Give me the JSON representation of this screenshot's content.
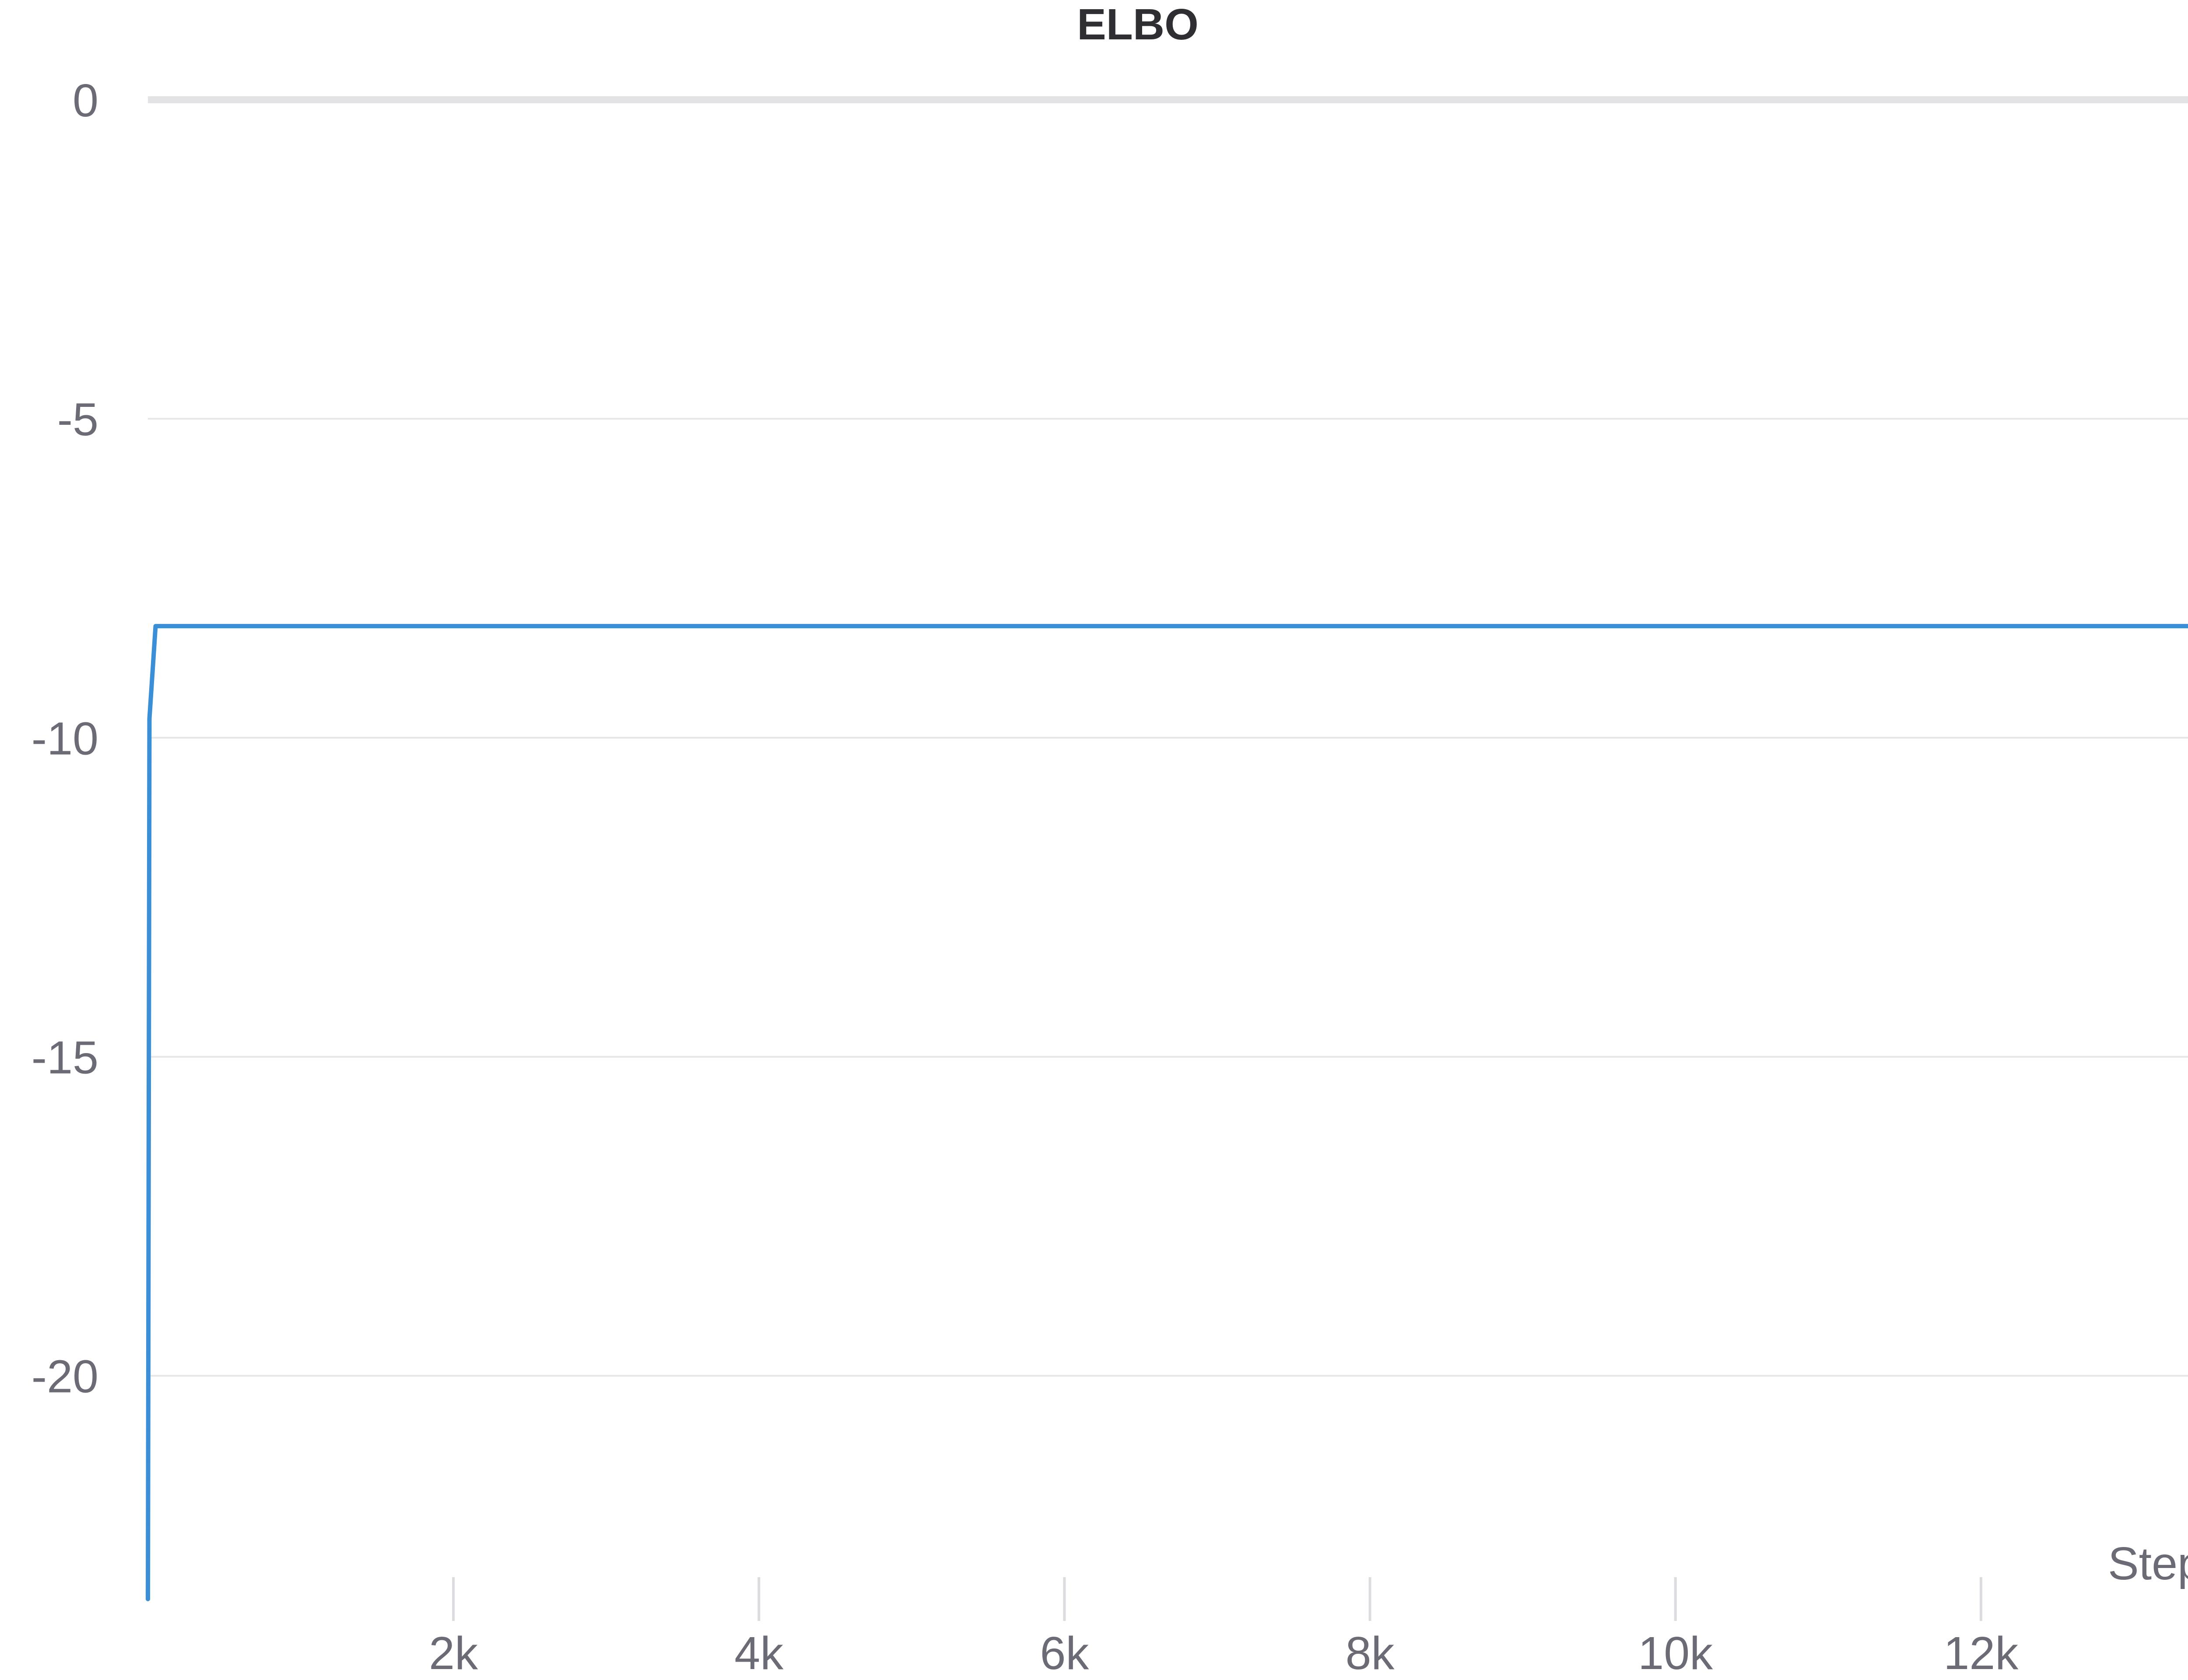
{
  "chart_data": {
    "type": "line",
    "title": "ELBO",
    "xlabel": "Step",
    "ylabel": "",
    "xlim": [
      0,
      13470
    ],
    "ylim": [
      -23.5,
      0
    ],
    "x_ticks": [
      2000,
      4000,
      6000,
      8000,
      10000,
      12000
    ],
    "x_tick_labels": [
      "2k",
      "4k",
      "6k",
      "8k",
      "10k",
      "12k"
    ],
    "y_ticks": [
      0,
      -5,
      -10,
      -15,
      -20
    ],
    "y_tick_labels": [
      "0",
      "-5",
      "-10",
      "-15",
      "-20"
    ],
    "grid": true,
    "series": [
      {
        "color": "#3a8fd6",
        "x": [
          0,
          10,
          50,
          13470
        ],
        "y": [
          -23.5,
          -9.7,
          -8.25,
          -8.25
        ]
      }
    ]
  }
}
